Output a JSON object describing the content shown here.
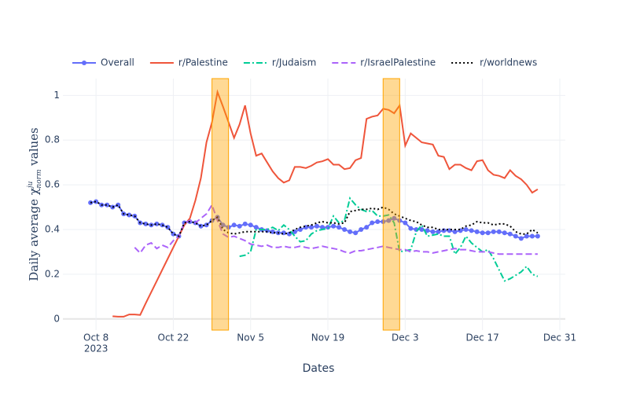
{
  "chart_data": {
    "type": "line",
    "x_label": "Dates",
    "y_label": {
      "before": "Daily average",
      "symbol": "χ",
      "superscript": "ju",
      "subscript": "norm",
      "after": "values"
    },
    "x": [
      "2023-10-07",
      "2023-10-08",
      "2023-10-09",
      "2023-10-10",
      "2023-10-11",
      "2023-10-12",
      "2023-10-13",
      "2023-10-14",
      "2023-10-15",
      "2023-10-16",
      "2023-10-17",
      "2023-10-18",
      "2023-10-19",
      "2023-10-20",
      "2023-10-21",
      "2023-10-22",
      "2023-10-23",
      "2023-10-24",
      "2023-10-25",
      "2023-10-26",
      "2023-10-27",
      "2023-10-28",
      "2023-10-29",
      "2023-10-30",
      "2023-10-31",
      "2023-11-01",
      "2023-11-02",
      "2023-11-03",
      "2023-11-04",
      "2023-11-05",
      "2023-11-06",
      "2023-11-07",
      "2023-11-08",
      "2023-11-09",
      "2023-11-10",
      "2023-11-11",
      "2023-11-12",
      "2023-11-13",
      "2023-11-14",
      "2023-11-15",
      "2023-11-16",
      "2023-11-17",
      "2023-11-18",
      "2023-11-19",
      "2023-11-20",
      "2023-11-21",
      "2023-11-22",
      "2023-11-23",
      "2023-11-24",
      "2023-11-25",
      "2023-11-26",
      "2023-11-27",
      "2023-11-28",
      "2023-11-29",
      "2023-11-30",
      "2023-12-01",
      "2023-12-02",
      "2023-12-03",
      "2023-12-04",
      "2023-12-05",
      "2023-12-06",
      "2023-12-07",
      "2023-12-08",
      "2023-12-09",
      "2023-12-10",
      "2023-12-11",
      "2023-12-12",
      "2023-12-13",
      "2023-12-14",
      "2023-12-15",
      "2023-12-16",
      "2023-12-17",
      "2023-12-18",
      "2023-12-19",
      "2023-12-20",
      "2023-12-21",
      "2023-12-22",
      "2023-12-23",
      "2023-12-24",
      "2023-12-25",
      "2023-12-26",
      "2023-12-27"
    ],
    "series": [
      {
        "name": "Overall",
        "color": "#636efa",
        "dash": "solid",
        "markers": true,
        "values": [
          0.52,
          0.525,
          0.51,
          0.51,
          0.5,
          0.51,
          0.47,
          0.465,
          0.46,
          0.43,
          0.425,
          0.42,
          0.425,
          0.42,
          0.41,
          0.38,
          0.37,
          0.43,
          0.435,
          0.43,
          0.415,
          0.42,
          0.44,
          0.455,
          0.42,
          0.41,
          0.42,
          0.415,
          0.425,
          0.42,
          0.41,
          0.4,
          0.395,
          0.39,
          0.385,
          0.385,
          0.38,
          0.39,
          0.4,
          0.41,
          0.41,
          0.415,
          0.41,
          0.41,
          0.415,
          0.41,
          0.4,
          0.39,
          0.385,
          0.4,
          0.41,
          0.43,
          0.435,
          0.435,
          0.44,
          0.45,
          0.44,
          0.43,
          0.405,
          0.4,
          0.4,
          0.395,
          0.39,
          0.39,
          0.395,
          0.395,
          0.39,
          0.395,
          0.4,
          0.395,
          0.39,
          0.385,
          0.385,
          0.39,
          0.39,
          0.385,
          0.38,
          0.37,
          0.36,
          0.37,
          0.37,
          0.37
        ]
      },
      {
        "name": "r/Palestine",
        "color": "#EF553B",
        "dash": "solid",
        "markers": false,
        "values": [
          null,
          null,
          null,
          null,
          0.012,
          0.01,
          0.01,
          0.02,
          0.02,
          0.018,
          0.07,
          0.12,
          0.17,
          0.22,
          0.27,
          0.32,
          0.37,
          0.42,
          0.45,
          0.53,
          0.63,
          0.79,
          0.88,
          1.015,
          0.95,
          0.88,
          0.81,
          0.87,
          0.955,
          0.83,
          0.73,
          0.74,
          0.7,
          0.66,
          0.63,
          0.61,
          0.62,
          0.68,
          0.68,
          0.675,
          0.685,
          0.7,
          0.705,
          0.715,
          0.69,
          0.69,
          0.67,
          0.675,
          0.71,
          0.72,
          0.895,
          0.905,
          0.91,
          0.94,
          0.935,
          0.92,
          0.955,
          0.775,
          0.83,
          0.81,
          0.79,
          0.785,
          0.78,
          0.73,
          0.725,
          0.67,
          0.69,
          0.69,
          0.675,
          0.665,
          0.705,
          0.71,
          0.665,
          0.645,
          0.64,
          0.63,
          0.665,
          0.64,
          0.625,
          0.6,
          0.565,
          0.58
        ]
      },
      {
        "name": "r/Judaism",
        "color": "#00cc96",
        "dash": "dashdot",
        "markers": false,
        "values": [
          null,
          null,
          null,
          null,
          null,
          null,
          null,
          null,
          null,
          null,
          null,
          null,
          null,
          null,
          null,
          null,
          null,
          null,
          null,
          null,
          null,
          null,
          null,
          null,
          null,
          null,
          null,
          0.28,
          0.285,
          0.3,
          0.4,
          0.4,
          0.4,
          0.41,
          0.395,
          0.42,
          0.4,
          0.37,
          0.345,
          0.35,
          0.38,
          0.395,
          0.4,
          0.405,
          0.46,
          0.43,
          0.44,
          0.54,
          0.51,
          0.49,
          0.48,
          0.485,
          0.46,
          0.46,
          0.465,
          0.43,
          0.3,
          0.305,
          0.31,
          0.39,
          0.42,
          0.37,
          0.375,
          0.38,
          0.37,
          0.37,
          0.29,
          0.32,
          0.37,
          0.34,
          0.32,
          0.3,
          0.31,
          0.27,
          0.22,
          0.17,
          0.18,
          0.195,
          0.21,
          0.235,
          0.2,
          0.19
        ]
      },
      {
        "name": "r/IsraelPalestine",
        "color": "#ab63fa",
        "dash": "dash",
        "markers": false,
        "values": [
          null,
          null,
          null,
          null,
          null,
          null,
          null,
          null,
          0.32,
          0.295,
          0.33,
          0.34,
          0.315,
          0.33,
          0.32,
          0.35,
          0.37,
          0.43,
          0.44,
          0.43,
          0.45,
          0.47,
          0.51,
          0.44,
          0.38,
          0.365,
          0.37,
          0.36,
          0.35,
          0.335,
          0.33,
          0.325,
          0.33,
          0.32,
          0.32,
          0.325,
          0.32,
          0.32,
          0.325,
          0.32,
          0.315,
          0.32,
          0.325,
          0.32,
          0.315,
          0.31,
          0.3,
          0.295,
          0.305,
          0.305,
          0.31,
          0.315,
          0.32,
          0.325,
          0.32,
          0.315,
          0.31,
          0.31,
          0.3,
          0.305,
          0.3,
          0.3,
          0.295,
          0.3,
          0.305,
          0.31,
          0.315,
          0.31,
          0.31,
          0.305,
          0.3,
          0.3,
          0.3,
          0.295,
          0.29,
          0.29,
          0.29,
          0.29,
          0.29,
          0.29,
          0.29,
          0.29
        ]
      },
      {
        "name": "r/worldnews",
        "color": "#000000",
        "dash": "dot",
        "markers": false,
        "values": [
          0.52,
          0.525,
          0.51,
          0.51,
          0.5,
          0.51,
          0.47,
          0.465,
          0.46,
          0.43,
          0.425,
          0.42,
          0.425,
          0.42,
          0.41,
          0.38,
          0.37,
          0.43,
          0.435,
          0.43,
          0.415,
          0.42,
          0.44,
          0.455,
          0.4,
          0.385,
          0.38,
          0.385,
          0.39,
          0.39,
          0.39,
          0.39,
          0.39,
          0.385,
          0.385,
          0.38,
          0.385,
          0.4,
          0.41,
          0.415,
          0.42,
          0.43,
          0.435,
          0.43,
          0.43,
          0.425,
          0.43,
          0.48,
          0.485,
          0.49,
          0.49,
          0.495,
          0.49,
          0.5,
          0.49,
          0.47,
          0.46,
          0.45,
          0.44,
          0.435,
          0.42,
          0.41,
          0.41,
          0.4,
          0.4,
          0.4,
          0.4,
          0.4,
          0.415,
          0.42,
          0.435,
          0.43,
          0.43,
          0.42,
          0.425,
          0.425,
          0.415,
          0.39,
          0.38,
          0.38,
          0.4,
          0.385
        ]
      }
    ],
    "shaded_regions": [
      {
        "x0": "2023-10-29",
        "x1": "2023-11-01"
      },
      {
        "x0": "2023-11-29",
        "x1": "2023-12-02"
      }
    ],
    "shade_color": "#FFA500",
    "xlim": [
      "2023-10-02",
      "2024-01-01"
    ],
    "xticks": [
      {
        "value": "2023-10-08",
        "label": "Oct 8"
      },
      {
        "value": "2023-10-22",
        "label": "Oct 22"
      },
      {
        "value": "2023-11-05",
        "label": "Nov 5"
      },
      {
        "value": "2023-11-19",
        "label": "Nov 19"
      },
      {
        "value": "2023-12-03",
        "label": "Dec 3"
      },
      {
        "value": "2023-12-17",
        "label": "Dec 17"
      },
      {
        "value": "2023-12-31",
        "label": "Dec 31"
      }
    ],
    "x_year_label": "2023",
    "ylim": [
      -0.05,
      1.075
    ],
    "yticks": [
      0,
      0.2,
      0.4,
      0.6,
      0.8,
      1
    ],
    "grid": true,
    "legend": "top"
  }
}
